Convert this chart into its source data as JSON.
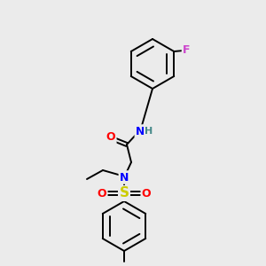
{
  "background_color": "#ebebeb",
  "bond_color": "#000000",
  "colors": {
    "O": "#ff0000",
    "N": "#0000ff",
    "S": "#cccc00",
    "F": "#cc44cc",
    "H": "#448888",
    "C": "#000000"
  },
  "figsize": [
    3.0,
    3.0
  ],
  "dpi": 100
}
